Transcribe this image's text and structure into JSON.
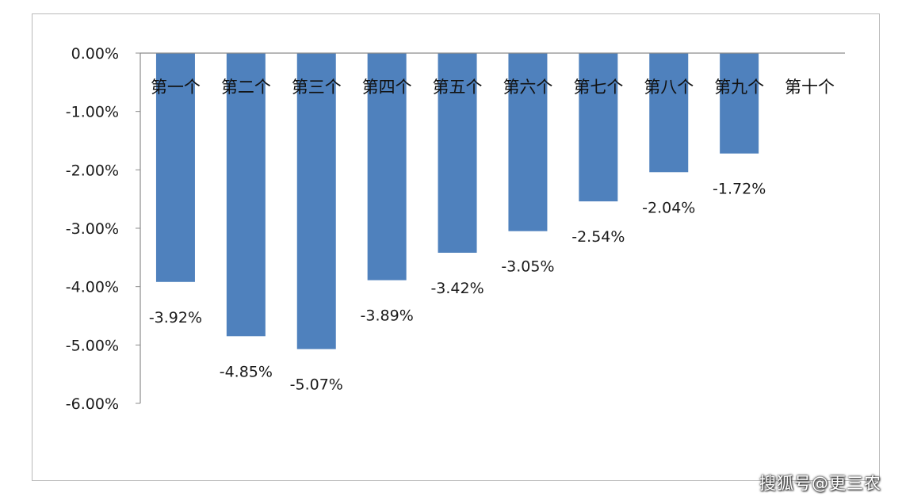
{
  "chart_data": {
    "type": "bar",
    "title": "",
    "xlabel": "",
    "ylabel": "",
    "categories": [
      "第一个",
      "第二个",
      "第三个",
      "第四个",
      "第五个",
      "第六个",
      "第七个",
      "第八个",
      "第九个",
      "第十个"
    ],
    "values": [
      -3.92,
      -4.85,
      -5.07,
      -3.89,
      -3.42,
      -3.05,
      -2.54,
      -2.04,
      -1.72,
      null
    ],
    "data_labels": [
      "-3.92%",
      "-4.85%",
      "-5.07%",
      "-3.89%",
      "-3.42%",
      "-3.05%",
      "-2.54%",
      "-2.04%",
      "-1.72%",
      ""
    ],
    "y_ticks": [
      0,
      -1,
      -2,
      -3,
      -4,
      -5,
      -6
    ],
    "y_tick_labels": [
      "0.00%",
      "-1.00%",
      "-2.00%",
      "-3.00%",
      "-4.00%",
      "-5.00%",
      "-6.00%"
    ],
    "ylim": [
      -6,
      0
    ],
    "unit": "%",
    "grid": false,
    "legend": "none",
    "bar_color": "#4f81bd"
  },
  "watermark": "搜狐号@更三农"
}
